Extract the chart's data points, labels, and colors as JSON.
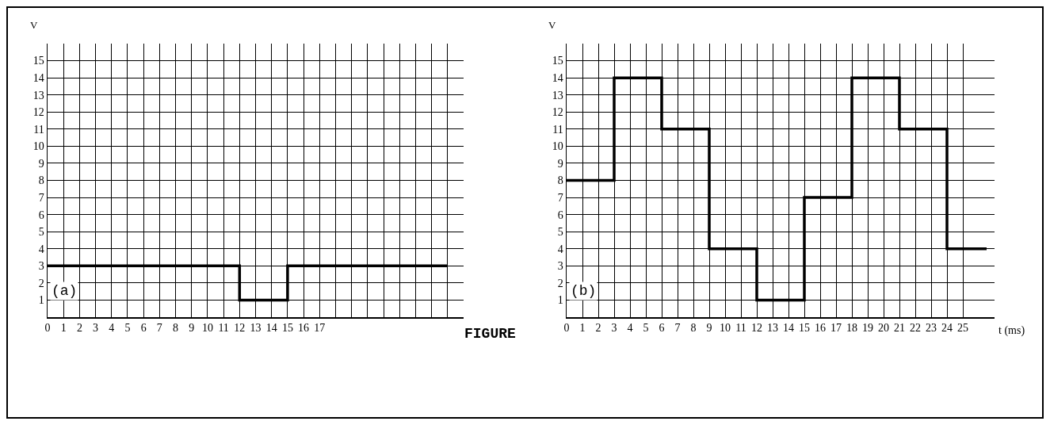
{
  "chart_data": [
    {
      "type": "step",
      "ylabel": "V",
      "annotations": [
        "(a)",
        "FIGURE"
      ],
      "x": [
        0,
        12,
        15,
        25
      ],
      "series": [
        {
          "color": "#000000",
          "values": [
            3,
            1,
            3,
            3
          ]
        }
      ],
      "xlim": [
        0,
        26
      ],
      "ylim": [
        0,
        16
      ],
      "xticks": [
        0,
        1,
        2,
        3,
        4,
        5,
        6,
        7,
        8,
        9,
        10,
        11,
        12,
        13,
        14,
        15,
        16,
        17,
        {
          "value": 18,
          "label": null
        },
        {
          "value": 19,
          "label": null
        },
        {
          "value": 20,
          "label": null
        },
        {
          "value": 21,
          "label": null
        },
        {
          "value": 22,
          "label": null
        },
        {
          "value": 23,
          "label": null
        },
        {
          "value": 24,
          "label": null
        },
        {
          "value": 25,
          "label": null
        }
      ],
      "yticks": [
        {
          "value": 0,
          "label": null
        },
        1,
        2,
        3,
        4,
        5,
        6,
        7,
        8,
        9,
        10,
        11,
        12,
        13,
        14,
        15
      ],
      "grid": true
    },
    {
      "type": "step",
      "xlabel": "t (ms)",
      "ylabel": "V",
      "annotations": [
        "(b)"
      ],
      "x": [
        0,
        3,
        6,
        9,
        12,
        15,
        18,
        21,
        24,
        26.5
      ],
      "series": [
        {
          "color": "#000000",
          "values": [
            8,
            14,
            11,
            4,
            1,
            7,
            14,
            11,
            4,
            4
          ]
        }
      ],
      "xlim": [
        0,
        27
      ],
      "ylim": [
        0,
        16
      ],
      "xticks": [
        0,
        1,
        2,
        3,
        4,
        5,
        6,
        7,
        8,
        9,
        10,
        11,
        12,
        13,
        14,
        15,
        16,
        17,
        18,
        19,
        20,
        21,
        22,
        23,
        24,
        25
      ],
      "yticks": [
        {
          "value": 0,
          "label": null
        },
        1,
        2,
        3,
        4,
        5,
        6,
        7,
        8,
        9,
        10,
        11,
        12,
        13,
        14,
        15
      ],
      "grid": true
    }
  ]
}
